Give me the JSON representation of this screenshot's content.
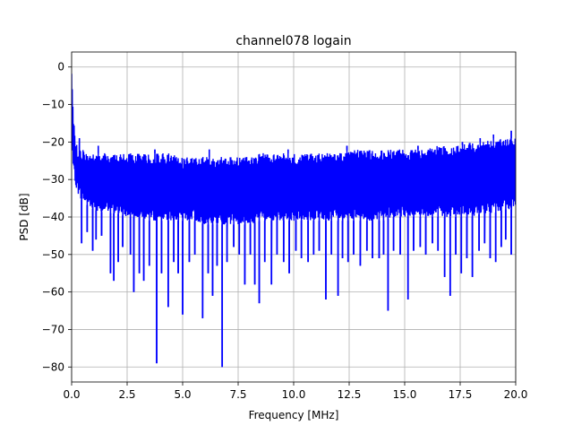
{
  "chart_data": {
    "type": "line",
    "title": "channel078 logain",
    "xlabel": "Frequency [MHz]",
    "ylabel": "PSD [dB]",
    "xlim": [
      0,
      20
    ],
    "ylim": [
      -84,
      4
    ],
    "xticks": [
      0,
      2.5,
      5,
      7.5,
      10,
      12.5,
      15,
      17.5,
      20
    ],
    "xtick_labels": [
      "0.0",
      "2.5",
      "5.0",
      "7.5",
      "10.0",
      "12.5",
      "15.0",
      "17.5",
      "20.0"
    ],
    "yticks": [
      0,
      -10,
      -20,
      -30,
      -40,
      -50,
      -60,
      -70,
      -80
    ],
    "ytick_labels": [
      "0",
      "−10",
      "−20",
      "−30",
      "−40",
      "−50",
      "−60",
      "−70",
      "−80"
    ],
    "grid": true,
    "series": [
      {
        "color": "#0000ff",
        "x": [
          0.0,
          0.04,
          0.08,
          0.12,
          0.16,
          0.2,
          0.25,
          0.3,
          0.4,
          0.5,
          0.75,
          1.0,
          1.5,
          2.0,
          2.5,
          3.0,
          3.5,
          4.0,
          4.5,
          5.0,
          5.5,
          6.0,
          6.5,
          7.0,
          7.5,
          8.0,
          8.5,
          9.0,
          9.5,
          10.0,
          10.5,
          11.0,
          11.5,
          12.0,
          12.5,
          13.0,
          13.5,
          14.0,
          14.5,
          15.0,
          15.5,
          16.0,
          16.5,
          17.0,
          17.5,
          18.0,
          18.5,
          19.0,
          19.5,
          20.0
        ],
        "upper": [
          0,
          -6,
          -12,
          -16,
          -19,
          -20,
          -21,
          -22,
          -22,
          -22,
          -23,
          -23,
          -23,
          -23,
          -23,
          -23,
          -23,
          -23,
          -23,
          -24,
          -24,
          -24,
          -24,
          -24,
          -24,
          -24,
          -23,
          -23,
          -23,
          -23,
          -23,
          -23,
          -23,
          -23,
          -22,
          -22,
          -22,
          -22,
          -22,
          -22,
          -22,
          -22,
          -21,
          -21,
          -21,
          -20,
          -20,
          -19,
          -19,
          -19
        ],
        "lower": [
          -20,
          -25,
          -28,
          -30,
          -31,
          -32,
          -33,
          -34,
          -35,
          -36,
          -37,
          -38,
          -39,
          -39,
          -40,
          -40,
          -41,
          -41,
          -41,
          -41,
          -41,
          -42,
          -42,
          -42,
          -42,
          -42,
          -41,
          -41,
          -41,
          -41,
          -41,
          -41,
          -41,
          -41,
          -41,
          -41,
          -41,
          -41,
          -40,
          -40,
          -40,
          -40,
          -40,
          -40,
          -40,
          -40,
          -39,
          -39,
          -38,
          -38
        ],
        "dips": [
          {
            "x": 0.45,
            "y": -47
          },
          {
            "x": 0.7,
            "y": -44
          },
          {
            "x": 0.95,
            "y": -49
          },
          {
            "x": 1.1,
            "y": -46
          },
          {
            "x": 1.35,
            "y": -45
          },
          {
            "x": 1.75,
            "y": -55
          },
          {
            "x": 1.9,
            "y": -57
          },
          {
            "x": 2.1,
            "y": -52
          },
          {
            "x": 2.3,
            "y": -48
          },
          {
            "x": 2.65,
            "y": -50
          },
          {
            "x": 2.8,
            "y": -60
          },
          {
            "x": 3.05,
            "y": -55
          },
          {
            "x": 3.25,
            "y": -57
          },
          {
            "x": 3.5,
            "y": -53
          },
          {
            "x": 3.83,
            "y": -79
          },
          {
            "x": 4.05,
            "y": -55
          },
          {
            "x": 4.35,
            "y": -64
          },
          {
            "x": 4.6,
            "y": -52
          },
          {
            "x": 4.8,
            "y": -55
          },
          {
            "x": 5.0,
            "y": -66
          },
          {
            "x": 5.3,
            "y": -52
          },
          {
            "x": 5.55,
            "y": -50
          },
          {
            "x": 5.9,
            "y": -67
          },
          {
            "x": 6.15,
            "y": -55
          },
          {
            "x": 6.35,
            "y": -61
          },
          {
            "x": 6.55,
            "y": -53
          },
          {
            "x": 6.78,
            "y": -80
          },
          {
            "x": 7.0,
            "y": -52
          },
          {
            "x": 7.3,
            "y": -48
          },
          {
            "x": 7.55,
            "y": -50
          },
          {
            "x": 7.8,
            "y": -58
          },
          {
            "x": 8.05,
            "y": -50
          },
          {
            "x": 8.25,
            "y": -58
          },
          {
            "x": 8.45,
            "y": -63
          },
          {
            "x": 8.7,
            "y": -52
          },
          {
            "x": 9.0,
            "y": -58
          },
          {
            "x": 9.25,
            "y": -50
          },
          {
            "x": 9.55,
            "y": -52
          },
          {
            "x": 9.8,
            "y": -55
          },
          {
            "x": 10.1,
            "y": -49
          },
          {
            "x": 10.35,
            "y": -51
          },
          {
            "x": 10.65,
            "y": -52
          },
          {
            "x": 10.9,
            "y": -50
          },
          {
            "x": 11.15,
            "y": -49
          },
          {
            "x": 11.45,
            "y": -62
          },
          {
            "x": 11.7,
            "y": -50
          },
          {
            "x": 12.0,
            "y": -61
          },
          {
            "x": 12.2,
            "y": -51
          },
          {
            "x": 12.45,
            "y": -52
          },
          {
            "x": 12.7,
            "y": -50
          },
          {
            "x": 13.0,
            "y": -53
          },
          {
            "x": 13.3,
            "y": -49
          },
          {
            "x": 13.55,
            "y": -51
          },
          {
            "x": 13.85,
            "y": -51
          },
          {
            "x": 14.05,
            "y": -50
          },
          {
            "x": 14.25,
            "y": -65
          },
          {
            "x": 14.5,
            "y": -49
          },
          {
            "x": 14.8,
            "y": -50
          },
          {
            "x": 15.15,
            "y": -62
          },
          {
            "x": 15.4,
            "y": -49
          },
          {
            "x": 15.7,
            "y": -48
          },
          {
            "x": 15.95,
            "y": -50
          },
          {
            "x": 16.25,
            "y": -47
          },
          {
            "x": 16.5,
            "y": -49
          },
          {
            "x": 16.8,
            "y": -56
          },
          {
            "x": 17.05,
            "y": -61
          },
          {
            "x": 17.3,
            "y": -50
          },
          {
            "x": 17.55,
            "y": -55
          },
          {
            "x": 17.8,
            "y": -51
          },
          {
            "x": 18.05,
            "y": -56
          },
          {
            "x": 18.35,
            "y": -49
          },
          {
            "x": 18.6,
            "y": -47
          },
          {
            "x": 18.85,
            "y": -51
          },
          {
            "x": 19.1,
            "y": -52
          },
          {
            "x": 19.35,
            "y": -48
          },
          {
            "x": 19.55,
            "y": -46
          },
          {
            "x": 19.8,
            "y": -50
          }
        ],
        "peaks": [
          {
            "x": 0.35,
            "y": -19
          },
          {
            "x": 1.2,
            "y": -21
          },
          {
            "x": 3.75,
            "y": -22
          },
          {
            "x": 6.2,
            "y": -22
          },
          {
            "x": 9.75,
            "y": -22
          },
          {
            "x": 12.4,
            "y": -21
          },
          {
            "x": 15.6,
            "y": -21
          },
          {
            "x": 17.6,
            "y": -20
          },
          {
            "x": 18.4,
            "y": -19
          },
          {
            "x": 19.0,
            "y": -18
          },
          {
            "x": 19.8,
            "y": -17
          }
        ]
      }
    ]
  }
}
